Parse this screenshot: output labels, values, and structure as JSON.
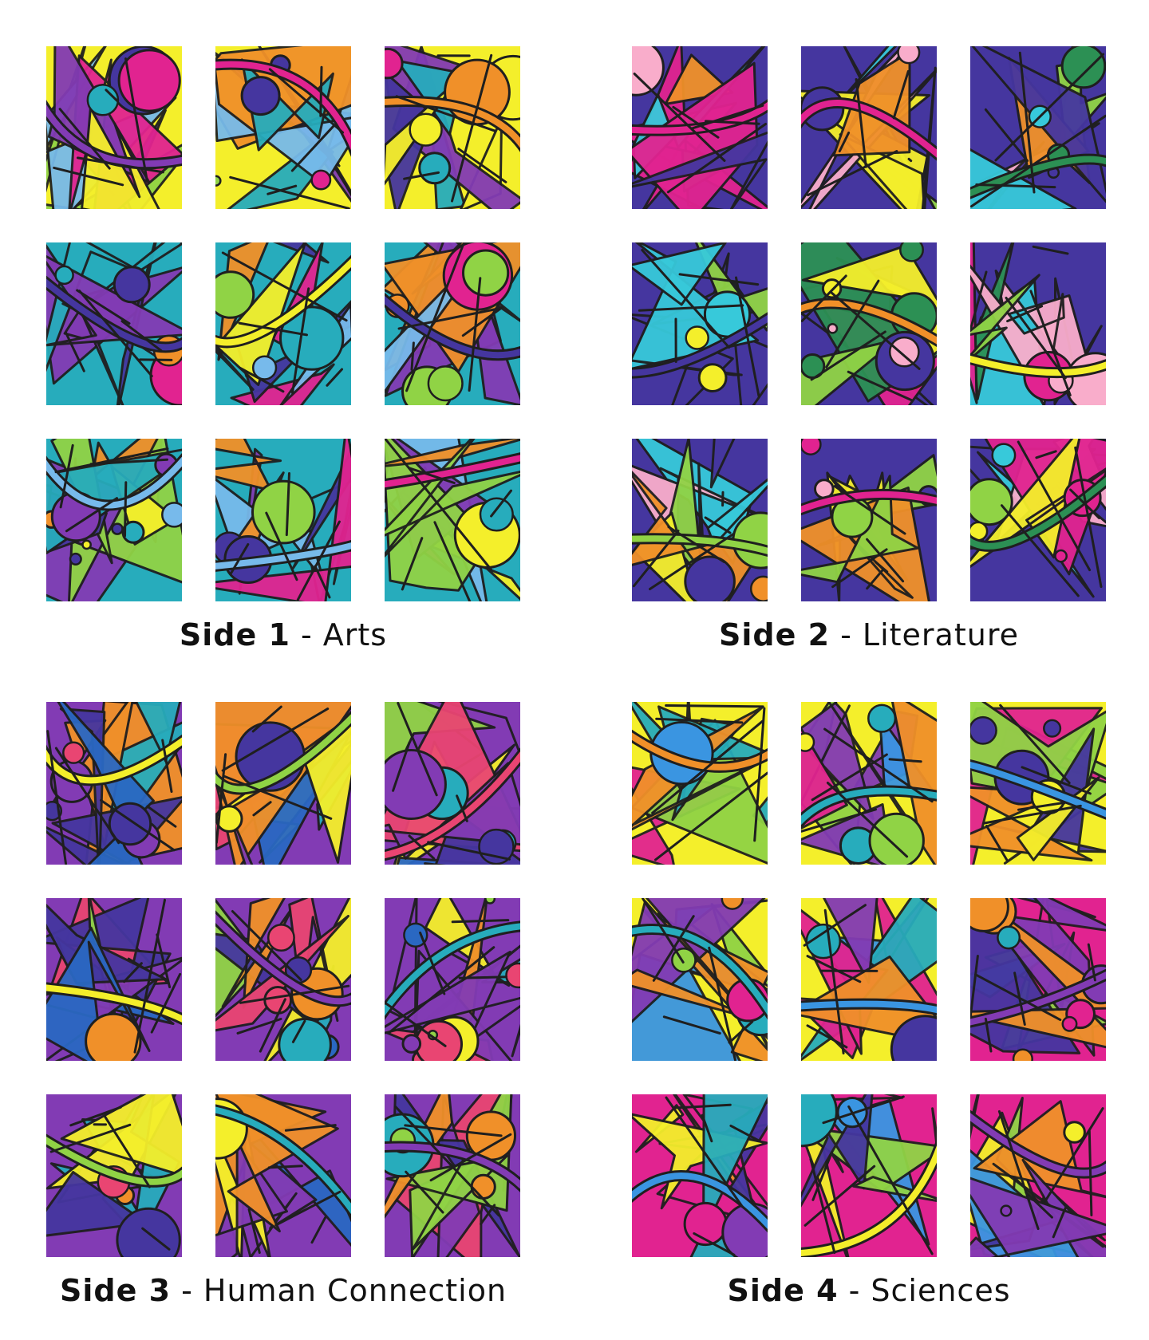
{
  "sides": [
    {
      "label_bold": "Side 1",
      "label_rest": " - Arts",
      "palette": [
        "#3a2a9a",
        "#f4ee1e",
        "#1aa7b8",
        "#8ad13a",
        "#e0168a",
        "#7b2fb0",
        "#6fb6ea",
        "#f08a1c"
      ]
    },
    {
      "label_bold": "Side 2",
      "label_rest": " - Literature",
      "palette": [
        "#f4ee1e",
        "#e0168a",
        "#3a2a9a",
        "#2bc6d8",
        "#f08a1c",
        "#f9a8c8",
        "#1f8a4a",
        "#8ad13a"
      ]
    },
    {
      "label_bold": "Side 3",
      "label_rest": " - Human Connection",
      "palette": [
        "#3a2a9a",
        "#8ad13a",
        "#7b2fb0",
        "#1aa7b8",
        "#e83a6a",
        "#f4ee1e",
        "#1d5fbf",
        "#f08a1c"
      ]
    },
    {
      "label_bold": "Side 4",
      "label_rest": " - Sciences",
      "palette": [
        "#1aa7b8",
        "#3a2a9a",
        "#f4ee1e",
        "#e0168a",
        "#2e8fe0",
        "#f08a1c",
        "#8ad13a",
        "#7b2fb0"
      ]
    }
  ],
  "colors": {
    "lead_lines": "#111111",
    "background": "#ffffff"
  }
}
